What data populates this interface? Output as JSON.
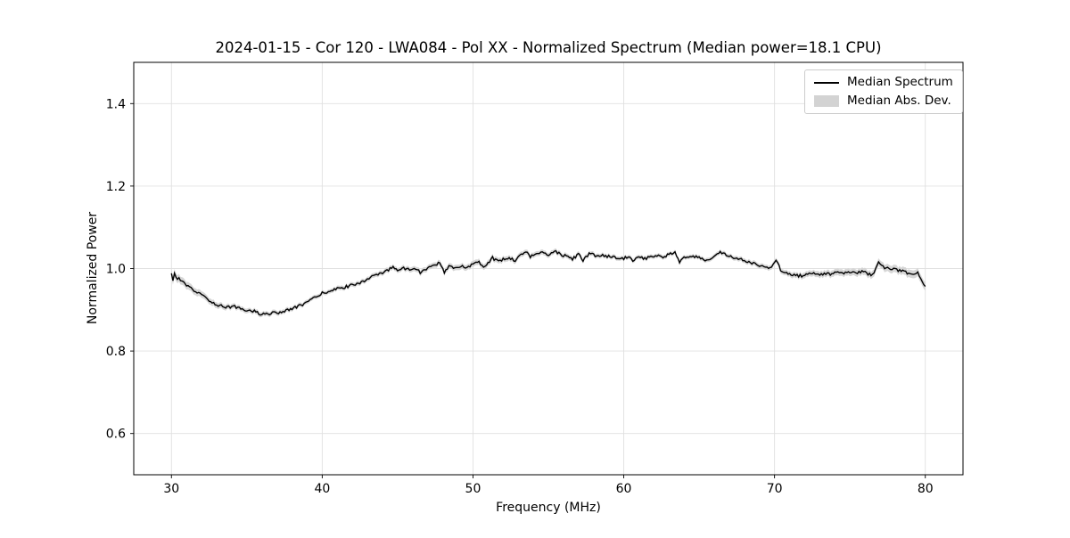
{
  "chart_data": {
    "type": "line",
    "title": "2024-01-15 - Cor 120 - LWA084 - Pol XX - Normalized Spectrum (Median power=18.1 CPU)",
    "xlabel": "Frequency (MHz)",
    "ylabel": "Normalized Power",
    "xlim": [
      27.5,
      82.5
    ],
    "ylim": [
      0.5,
      1.5
    ],
    "xticks": [
      30,
      40,
      50,
      60,
      70,
      80
    ],
    "yticks": [
      0.6,
      0.8,
      1.0,
      1.2,
      1.4
    ],
    "grid": true,
    "legend": {
      "position": "upper right",
      "entries": [
        {
          "label": "Median Spectrum",
          "type": "line",
          "color": "#000000"
        },
        {
          "label": "Median Abs. Dev.",
          "type": "patch",
          "color": "#d3d3d3"
        }
      ]
    },
    "series": [
      {
        "name": "Median Spectrum",
        "color": "#000000",
        "points": [
          [
            30.0,
            0.985
          ],
          [
            30.1,
            0.972
          ],
          [
            30.2,
            0.989
          ],
          [
            30.35,
            0.971
          ],
          [
            30.5,
            0.979
          ],
          [
            30.7,
            0.968
          ],
          [
            31.0,
            0.958
          ],
          [
            31.3,
            0.951
          ],
          [
            31.6,
            0.944
          ],
          [
            32.0,
            0.936
          ],
          [
            32.4,
            0.926
          ],
          [
            32.8,
            0.916
          ],
          [
            33.2,
            0.91
          ],
          [
            33.5,
            0.908
          ],
          [
            33.8,
            0.907
          ],
          [
            34.1,
            0.908
          ],
          [
            34.4,
            0.906
          ],
          [
            34.6,
            0.901
          ],
          [
            34.9,
            0.899
          ],
          [
            35.2,
            0.898
          ],
          [
            35.5,
            0.897
          ],
          [
            35.8,
            0.891
          ],
          [
            36.2,
            0.89
          ],
          [
            36.6,
            0.891
          ],
          [
            37.0,
            0.893
          ],
          [
            37.4,
            0.896
          ],
          [
            38.0,
            0.902
          ],
          [
            38.4,
            0.908
          ],
          [
            38.8,
            0.915
          ],
          [
            39.2,
            0.922
          ],
          [
            39.6,
            0.931
          ],
          [
            40.0,
            0.94
          ],
          [
            40.4,
            0.945
          ],
          [
            40.8,
            0.949
          ],
          [
            41.2,
            0.952
          ],
          [
            41.6,
            0.956
          ],
          [
            42.0,
            0.96
          ],
          [
            42.4,
            0.965
          ],
          [
            42.8,
            0.971
          ],
          [
            43.2,
            0.978
          ],
          [
            43.6,
            0.984
          ],
          [
            44.0,
            0.988
          ],
          [
            44.4,
            0.997
          ],
          [
            44.7,
            1.003
          ],
          [
            45.0,
            0.998
          ],
          [
            45.4,
            1.002
          ],
          [
            45.8,
            0.996
          ],
          [
            46.2,
            1.0
          ],
          [
            46.5,
            0.99
          ],
          [
            46.8,
            0.998
          ],
          [
            47.2,
            1.003
          ],
          [
            47.5,
            1.008
          ],
          [
            47.8,
            1.016
          ],
          [
            48.1,
            0.992
          ],
          [
            48.4,
            1.004
          ],
          [
            48.8,
            1.0
          ],
          [
            49.2,
            1.007
          ],
          [
            49.6,
            1.003
          ],
          [
            50.0,
            1.012
          ],
          [
            50.4,
            1.016
          ],
          [
            50.7,
            1.006
          ],
          [
            51.0,
            1.014
          ],
          [
            51.3,
            1.026
          ],
          [
            51.6,
            1.018
          ],
          [
            52.0,
            1.022
          ],
          [
            52.4,
            1.027
          ],
          [
            52.8,
            1.02
          ],
          [
            53.2,
            1.034
          ],
          [
            53.5,
            1.042
          ],
          [
            53.8,
            1.029
          ],
          [
            54.2,
            1.035
          ],
          [
            54.6,
            1.038
          ],
          [
            55.0,
            1.033
          ],
          [
            55.4,
            1.044
          ],
          [
            55.8,
            1.034
          ],
          [
            56.2,
            1.03
          ],
          [
            56.6,
            1.023
          ],
          [
            57.0,
            1.034
          ],
          [
            57.3,
            1.02
          ],
          [
            57.8,
            1.039
          ],
          [
            58.1,
            1.03
          ],
          [
            58.5,
            1.032
          ],
          [
            59.0,
            1.029
          ],
          [
            59.4,
            1.026
          ],
          [
            59.8,
            1.022
          ],
          [
            60.2,
            1.028
          ],
          [
            60.6,
            1.021
          ],
          [
            61.0,
            1.027
          ],
          [
            61.4,
            1.024
          ],
          [
            61.8,
            1.03
          ],
          [
            62.2,
            1.032
          ],
          [
            62.6,
            1.029
          ],
          [
            63.0,
            1.034
          ],
          [
            63.4,
            1.04
          ],
          [
            63.7,
            1.013
          ],
          [
            64.0,
            1.028
          ],
          [
            64.3,
            1.025
          ],
          [
            64.6,
            1.028
          ],
          [
            65.0,
            1.03
          ],
          [
            65.4,
            1.016
          ],
          [
            65.8,
            1.026
          ],
          [
            66.1,
            1.033
          ],
          [
            66.4,
            1.04
          ],
          [
            66.7,
            1.036
          ],
          [
            67.0,
            1.031
          ],
          [
            67.4,
            1.026
          ],
          [
            67.8,
            1.021
          ],
          [
            68.2,
            1.016
          ],
          [
            68.6,
            1.013
          ],
          [
            69.0,
            1.008
          ],
          [
            69.4,
            1.004
          ],
          [
            69.8,
            1.0
          ],
          [
            70.1,
            1.023
          ],
          [
            70.4,
            0.996
          ],
          [
            70.7,
            0.99
          ],
          [
            71.0,
            0.987
          ],
          [
            71.4,
            0.984
          ],
          [
            71.8,
            0.982
          ],
          [
            72.2,
            0.986
          ],
          [
            72.6,
            0.99
          ],
          [
            73.0,
            0.983
          ],
          [
            73.4,
            0.989
          ],
          [
            73.8,
            0.986
          ],
          [
            74.2,
            0.992
          ],
          [
            74.6,
            0.988
          ],
          [
            75.0,
            0.991
          ],
          [
            75.4,
            0.988
          ],
          [
            75.8,
            0.992
          ],
          [
            76.2,
            0.988
          ],
          [
            76.5,
            0.985
          ],
          [
            76.9,
            1.016
          ],
          [
            77.2,
            1.004
          ],
          [
            77.6,
            1.0
          ],
          [
            78.0,
            0.998
          ],
          [
            78.4,
            0.994
          ],
          [
            78.8,
            0.989
          ],
          [
            79.1,
            0.986
          ],
          [
            79.35,
            0.984
          ],
          [
            79.5,
            0.989
          ],
          [
            79.7,
            0.975
          ],
          [
            79.85,
            0.966
          ],
          [
            80.0,
            0.955
          ]
        ]
      },
      {
        "name": "Median Abs. Dev.",
        "color": "#d3d3d3",
        "band_halfwidth": [
          [
            30,
            0.01
          ],
          [
            32,
            0.008
          ],
          [
            34,
            0.006
          ],
          [
            40,
            0.005
          ],
          [
            45,
            0.006
          ],
          [
            50,
            0.007
          ],
          [
            55,
            0.006
          ],
          [
            60,
            0.005
          ],
          [
            65,
            0.005
          ],
          [
            70,
            0.006
          ],
          [
            74,
            0.008
          ],
          [
            78,
            0.009
          ],
          [
            80,
            0.01
          ]
        ]
      }
    ],
    "noise": {
      "amplitude": 0.0035,
      "sample_step_mhz": 0.1,
      "seed": 12345
    }
  },
  "colors": {
    "line": "#000000",
    "band": "#d3d3d3",
    "grid": "#e0e0e0",
    "spine": "#000000",
    "background": "#ffffff",
    "legend_border": "#cccccc"
  }
}
